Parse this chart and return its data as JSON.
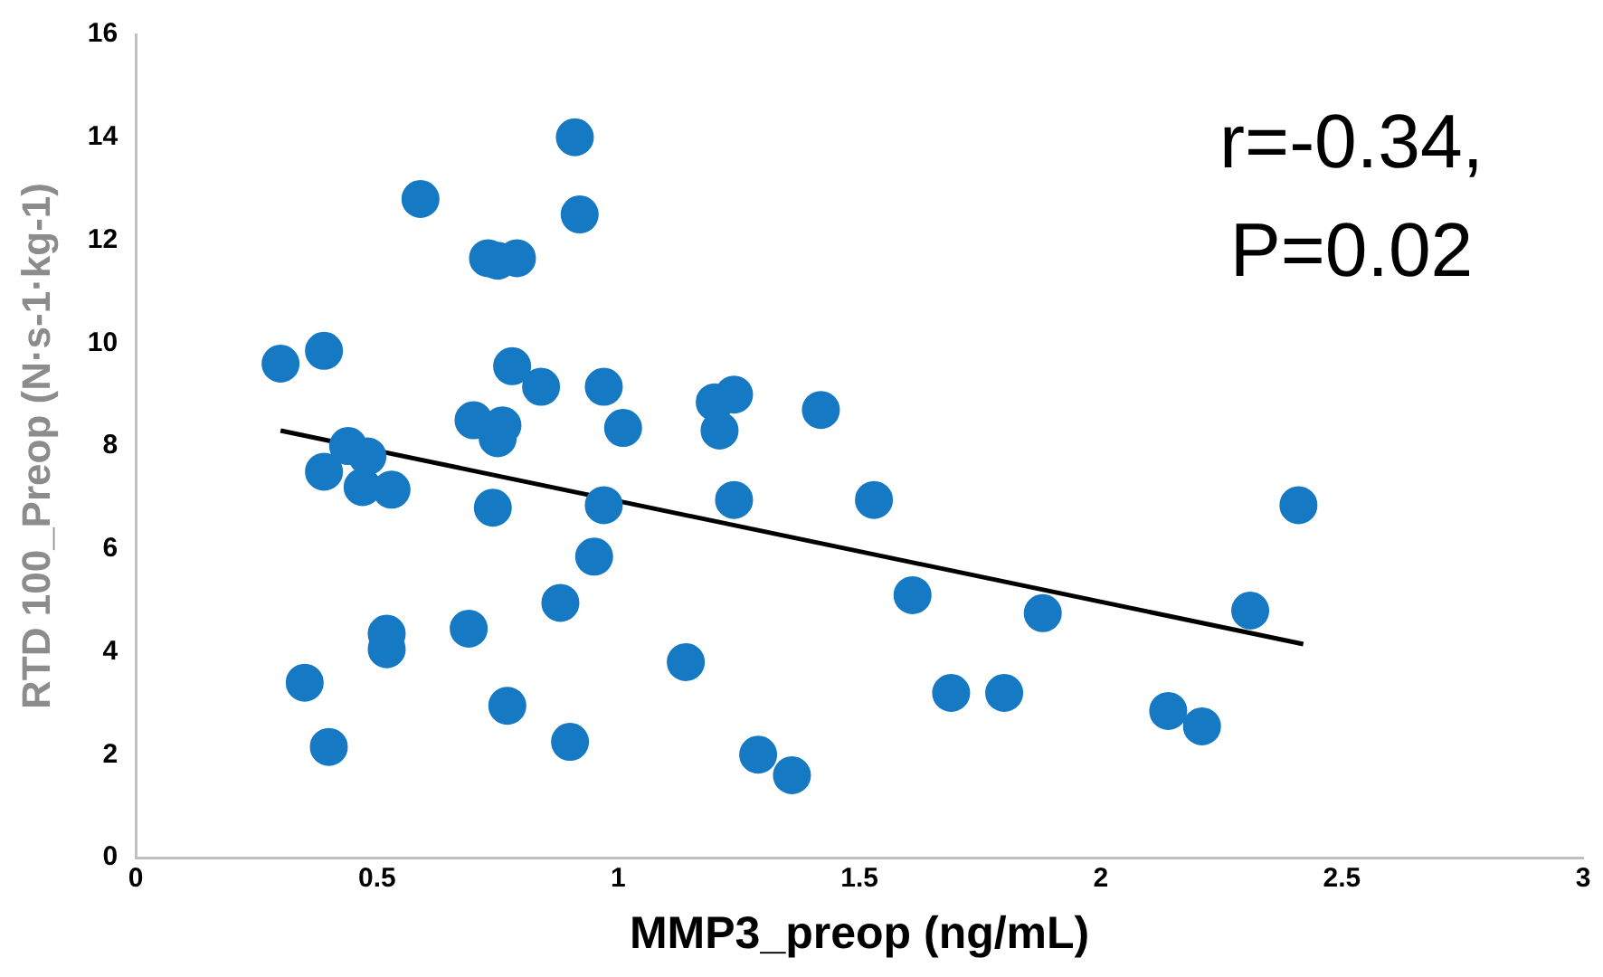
{
  "chart_data": {
    "type": "scatter",
    "xlabel": "MMP3_preop (ng/mL)",
    "ylabel": "RTD 100_Preop (N·s-1·kg-1)",
    "xlim": [
      0,
      3
    ],
    "ylim": [
      0,
      16
    ],
    "xticks": [
      0,
      0.5,
      1,
      1.5,
      2,
      2.5,
      3
    ],
    "yticks": [
      0,
      2,
      4,
      6,
      8,
      10,
      12,
      14,
      16
    ],
    "grid": false,
    "legend": false,
    "marker": "circle",
    "annotations": [
      "r=-0.34,",
      "P=0.02"
    ],
    "series": [
      {
        "color": "#1679c4",
        "x": [
          0.3,
          0.39,
          0.35,
          0.4,
          0.39,
          0.44,
          0.48,
          0.47,
          0.53,
          0.52,
          0.52,
          0.59,
          0.69,
          0.7,
          0.73,
          0.75,
          0.79,
          0.75,
          0.76,
          0.74,
          0.77,
          0.78,
          0.84,
          0.88,
          0.9,
          0.91,
          0.92,
          0.97,
          0.97,
          0.95,
          1.01,
          1.14,
          1.2,
          1.24,
          1.21,
          1.24,
          1.29,
          1.36,
          1.42,
          1.53,
          1.61,
          1.69,
          1.8,
          1.88,
          2.14,
          2.21,
          2.31,
          2.41
        ],
        "values": [
          9.6,
          9.85,
          3.4,
          2.15,
          7.5,
          8.0,
          7.8,
          7.2,
          7.15,
          4.35,
          4.05,
          12.8,
          4.45,
          8.5,
          11.65,
          11.6,
          11.65,
          8.15,
          8.4,
          6.8,
          2.95,
          9.55,
          9.15,
          4.95,
          2.25,
          14.0,
          12.5,
          9.15,
          6.85,
          5.85,
          8.35,
          3.8,
          8.85,
          9.0,
          8.3,
          6.95,
          2.0,
          1.6,
          8.7,
          6.95,
          5.1,
          3.2,
          3.2,
          4.75,
          2.85,
          2.55,
          4.8,
          6.85
        ]
      },
      {
        "type": "line",
        "color": "#000000",
        "marker": "none",
        "x": [
          0.3,
          2.42
        ],
        "values": [
          8.3,
          4.15
        ]
      }
    ]
  }
}
